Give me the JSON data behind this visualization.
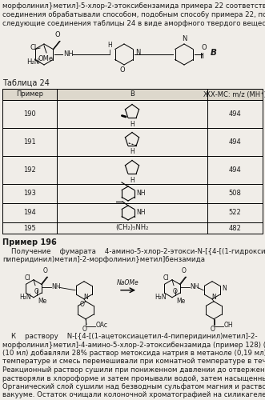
{
  "bg_color": "#f0ede8",
  "text_color": "#1a1a1a",
  "page_width": 3.31,
  "page_height": 5.0,
  "dpi": 100,
  "top_text_lines": [
    "морфолинил}метил]-5-хлор-2-этоксибензамида примера 22 соответствующие исходные",
    "соединения обрабатывали способом, подобным способу примера 22, получая при этом",
    "следующие соединения таблицы 24 в виде аморфного твердого вещества."
  ],
  "table_title": "Таблица 24",
  "table_headers": [
    "Пример",
    "B",
    "ЖХ-МС: m/z (МН⁺)"
  ],
  "table_rows_num": [
    "190",
    "191",
    "192",
    "193",
    "194",
    "195"
  ],
  "table_rows_mz": [
    "494",
    "494",
    "494",
    "508",
    "522",
    "482"
  ],
  "table_row_B_195": "(CH₂)₅NH₂",
  "example_bold": "Пример 196",
  "example_subtitle_line1": "    Получение    фумарата    4-амино-5-хлор-2-этокси-N-[{4-[(1-гидроксиацетил-4-",
  "example_subtitle_line2": "пиперидинил)метил]-2-морфолинил}метил]бензамида",
  "body_lines": [
    "    К    раствору    N-[{4-[(1-ацетоксиацетил-4-пиперидинил)метил]-2-",
    "морфолинил}метил]-4-амино-5-хлор-2-этоксибензамида (пример 128) (1,0 г) в метаноле",
    "(10 мл) добавляли 28% раствор метоксида натрия в метаноле (0,19 мл) при комнатной",
    "температуре и смесь перемешивали при комнатной температуре в течение 3 часов.",
    "Реакционный раствор сушили при пониженном давлении до отвержения. Остаток",
    "растворяли в хлороформе и затем промывали водой, затем насыщенным раствором соли.",
    "Органический слой сушили над безводным сульфатом магния и растворитель удаляли в",
    "вакууме. Остаток очищали колоночной хроматографией на силикагеле (элюент:"
  ],
  "naome_label": "NaOMe",
  "lm_cl": "Cl",
  "lm_h2n": "H₂N",
  "lm_ome": "OMe",
  "lm_me": "Me",
  "lm_nh": "NH",
  "lm_oac": "OAc",
  "lm_o": "O",
  "lm_n": "N",
  "rm_cl": "Cl",
  "rm_h2n": "H₂N",
  "rm_me": "Me",
  "rm_nh": "NH",
  "rm_oh": "OH",
  "rm_o": "O",
  "rm_n": "N",
  "top_mol_cl": "Cl",
  "top_mol_h2n": "H₂N",
  "top_mol_ome": "OMe",
  "top_mol_nh": "NH",
  "top_mol_n": "N",
  "top_mol_b": "B",
  "top_mol_o": "O",
  "H_label": "H"
}
